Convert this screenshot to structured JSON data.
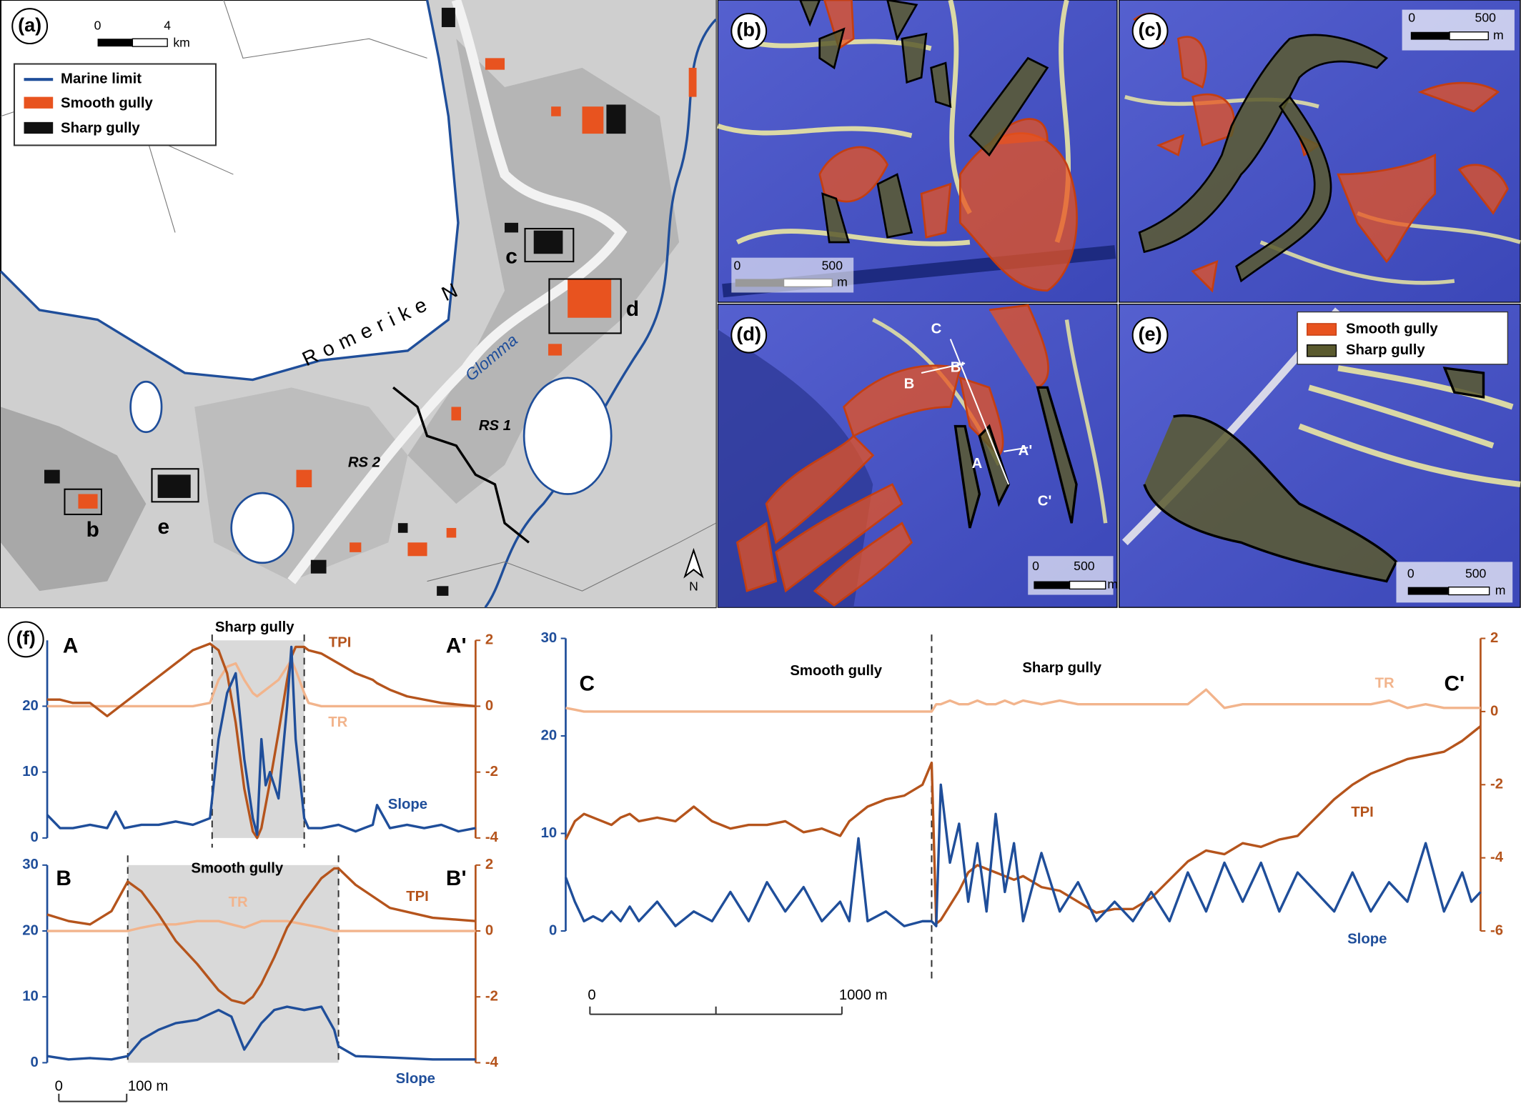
{
  "map_a": {
    "label": "(a)",
    "scale": {
      "start": "0",
      "end": "4",
      "unit": "km"
    },
    "legend": [
      "Marine limit",
      "Smooth gully",
      "Sharp gully"
    ],
    "places": {
      "region": "Romerike N",
      "river": "Glomma",
      "rs1": "RS 1",
      "rs2": "RS 2"
    },
    "insets": [
      "b",
      "c",
      "d",
      "e"
    ],
    "north": "N"
  },
  "insets": [
    {
      "label": "(b)",
      "scale": {
        "start": "0",
        "end": "500",
        "unit": "m"
      }
    },
    {
      "label": "(c)",
      "scale": {
        "start": "0",
        "end": "500",
        "unit": "m"
      }
    },
    {
      "label": "(d)",
      "scale": {
        "start": "0",
        "end": "500",
        "unit": "m"
      },
      "sections": [
        "C",
        "B",
        "B'",
        "A",
        "A'",
        "C'"
      ]
    },
    {
      "label": "(e)",
      "scale": {
        "start": "0",
        "end": "500",
        "unit": "m"
      },
      "legend": [
        "Smooth gully",
        "Sharp gully"
      ]
    }
  ],
  "profiles": {
    "label": "(f)",
    "charts": [
      {
        "type": "line",
        "start": "A",
        "end": "A'",
        "xlim": [
          0,
          100
        ],
        "ylim": [
          0,
          30
        ],
        "yticks": [
          0,
          10,
          20
        ],
        "y2lim": [
          -4,
          2
        ],
        "y2ticks": [
          2,
          0,
          -2,
          -4
        ],
        "zones": [
          {
            "name": "Sharp gully",
            "x": [
              38.5,
              60
            ],
            "shaded": true
          }
        ],
        "x": [
          0,
          3,
          6,
          10,
          14,
          16,
          18,
          22,
          26,
          30,
          34,
          38,
          40,
          42,
          44,
          46,
          48,
          49,
          50,
          51,
          52,
          54,
          56,
          57,
          58,
          60,
          61,
          64,
          68,
          72,
          76,
          77,
          80,
          84,
          88,
          92,
          96,
          100
        ],
        "series": [
          {
            "name": "Slope",
            "color": "#1f4e9a",
            "values": [
              3.5,
              1.5,
              1.5,
              2,
              1.5,
              4,
              1.5,
              2,
              2,
              2.5,
              2,
              3,
              15,
              22,
              25,
              12,
              3,
              0.5,
              15,
              8,
              10,
              6,
              20,
              29,
              15,
              3,
              1.5,
              1.5,
              2,
              1,
              2,
              5,
              1.5,
              2,
              1.5,
              2,
              1,
              1.5
            ]
          },
          {
            "name": "TPI",
            "color": "#b5541c",
            "axis": "y2",
            "values": [
              0.2,
              0.2,
              0.1,
              0.1,
              -0.3,
              -0.1,
              0.1,
              0.5,
              0.9,
              1.3,
              1.7,
              1.9,
              1.7,
              1.0,
              -0.5,
              -2.5,
              -3.8,
              -4,
              -3.7,
              -3.0,
              -2.3,
              -0.8,
              0.8,
              1.5,
              1.8,
              1.8,
              1.7,
              1.6,
              1.3,
              1.0,
              0.8,
              0.7,
              0.5,
              0.3,
              0.2,
              0.1,
              0.05,
              0
            ]
          },
          {
            "name": "TR",
            "color": "#f2b48c",
            "axis": "y2",
            "values": [
              0,
              0,
              0,
              0,
              0,
              0,
              0,
              0,
              0,
              0,
              0,
              0.1,
              0.8,
              1.2,
              1.3,
              0.8,
              0.4,
              0.3,
              0.4,
              0.5,
              0.6,
              0.8,
              1.2,
              1.4,
              1.1,
              0.4,
              0.1,
              0,
              0,
              0,
              0,
              0,
              0,
              0,
              0,
              0,
              0,
              0
            ]
          }
        ]
      },
      {
        "type": "line",
        "start": "B",
        "end": "B'",
        "xlim": [
          0,
          100
        ],
        "ylim": [
          0,
          30
        ],
        "yticks": [
          0,
          10,
          20,
          30
        ],
        "y2lim": [
          -4,
          2
        ],
        "y2ticks": [
          2,
          0,
          -2,
          -4
        ],
        "zones": [
          {
            "name": "Smooth gully",
            "x": [
              18.8,
              68
            ],
            "shaded": true
          }
        ],
        "scale_bar": {
          "start": "0",
          "end": "100 m"
        },
        "x": [
          0,
          5,
          10,
          15,
          18.8,
          22,
          26,
          30,
          35,
          40,
          43,
          46,
          48,
          50,
          53,
          56,
          60,
          64,
          67,
          68,
          72,
          80,
          90,
          100
        ],
        "series": [
          {
            "name": "Slope",
            "color": "#1f4e9a",
            "values": [
              1,
              0.5,
              0.7,
              0.5,
              1,
              3.5,
              5,
              6,
              6.5,
              8,
              7,
              2,
              4,
              6,
              8,
              8.5,
              8,
              8.5,
              5,
              2.5,
              1,
              0.8,
              0.5,
              0.5
            ]
          },
          {
            "name": "TPI",
            "color": "#b5541c",
            "axis": "y2",
            "values": [
              0.5,
              0.3,
              0.2,
              0.6,
              1.5,
              1.2,
              0.5,
              -0.3,
              -1.0,
              -1.8,
              -2.1,
              -2.2,
              -2.0,
              -1.6,
              -0.8,
              0.1,
              0.9,
              1.6,
              1.9,
              1.9,
              1.4,
              0.7,
              0.4,
              0.3
            ]
          },
          {
            "name": "TR",
            "color": "#f2b48c",
            "axis": "y2",
            "values": [
              0,
              0,
              0,
              0,
              0,
              0.1,
              0.2,
              0.2,
              0.3,
              0.3,
              0.2,
              0.1,
              0.2,
              0.3,
              0.3,
              0.3,
              0.2,
              0.1,
              0,
              0,
              0,
              0,
              0,
              0
            ]
          }
        ]
      },
      {
        "type": "line",
        "start": "C",
        "end": "C'",
        "xlim": [
          0,
          100
        ],
        "ylim": [
          0,
          30
        ],
        "yticks": [
          0,
          10,
          20,
          30
        ],
        "y2lim": [
          -6,
          2
        ],
        "y2ticks": [
          2,
          0,
          -2,
          -4,
          -6
        ],
        "zones": [
          {
            "name": "Smooth gully",
            "x": [
              0,
              40
            ],
            "shaded": false
          },
          {
            "name": "Sharp gully",
            "x": [
              40,
              100
            ],
            "shaded": false
          }
        ],
        "scale_bar": {
          "start": "0",
          "end": "1000 m"
        },
        "x": [
          0,
          1,
          2,
          3,
          4,
          5,
          6,
          7,
          8,
          10,
          12,
          14,
          16,
          18,
          20,
          22,
          24,
          26,
          28,
          30,
          31,
          32,
          33,
          35,
          37,
          39,
          40,
          40.5,
          41,
          42,
          43,
          44,
          45,
          46,
          47,
          48,
          49,
          50,
          52,
          54,
          56,
          58,
          60,
          62,
          64,
          66,
          68,
          70,
          72,
          74,
          76,
          78,
          80,
          82,
          84,
          86,
          88,
          90,
          92,
          94,
          96,
          98,
          99,
          100
        ],
        "series": [
          {
            "name": "Slope",
            "color": "#1f4e9a",
            "values": [
              5.5,
              3,
              1,
              1.5,
              1,
              2,
              1,
              2.5,
              1,
              3,
              0.5,
              2,
              1,
              4,
              1,
              5,
              2,
              4.5,
              1,
              3,
              1,
              9.5,
              1,
              2,
              0.5,
              1,
              1,
              0.5,
              15,
              7,
              11,
              3,
              9,
              2,
              12,
              4,
              9,
              1,
              8,
              2,
              5,
              1,
              3,
              1,
              4,
              1,
              6,
              2,
              7,
              3,
              7,
              2,
              6,
              4,
              2,
              6,
              2,
              5,
              3,
              9,
              2,
              6,
              3,
              4
            ]
          },
          {
            "name": "TPI",
            "color": "#b5541c",
            "axis": "y2",
            "values": [
              -3.5,
              -3.0,
              -2.8,
              -2.9,
              -3.0,
              -3.1,
              -2.9,
              -2.8,
              -3.0,
              -2.9,
              -3.0,
              -2.6,
              -3.0,
              -3.2,
              -3.1,
              -3.1,
              -3.0,
              -3.3,
              -3.2,
              -3.4,
              -3.0,
              -2.8,
              -2.6,
              -2.4,
              -2.3,
              -2.0,
              -1.4,
              -5.8,
              -5.7,
              -5.3,
              -4.9,
              -4.4,
              -4.2,
              -4.3,
              -4.4,
              -4.5,
              -4.6,
              -4.5,
              -4.8,
              -4.9,
              -5.2,
              -5.5,
              -5.4,
              -5.4,
              -5.1,
              -4.6,
              -4.1,
              -3.8,
              -3.9,
              -3.6,
              -3.7,
              -3.5,
              -3.4,
              -2.9,
              -2.4,
              -2.0,
              -1.7,
              -1.5,
              -1.3,
              -1.2,
              -1.1,
              -0.8,
              -0.6,
              -0.4
            ]
          },
          {
            "name": "TR",
            "color": "#f2b48c",
            "axis": "y2",
            "values": [
              0.1,
              0.05,
              0,
              0,
              0,
              0,
              0,
              0,
              0,
              0,
              0,
              0,
              0,
              0,
              0,
              0,
              0,
              0,
              0,
              0,
              0,
              0,
              0,
              0,
              0,
              0,
              0,
              0.2,
              0.2,
              0.3,
              0.2,
              0.2,
              0.3,
              0.2,
              0.2,
              0.3,
              0.2,
              0.3,
              0.2,
              0.3,
              0.2,
              0.2,
              0.2,
              0.2,
              0.2,
              0.2,
              0.2,
              0.6,
              0.1,
              0.2,
              0.2,
              0.2,
              0.2,
              0.2,
              0.2,
              0.2,
              0.2,
              0.3,
              0.1,
              0.2,
              0.1,
              0.1,
              0.1,
              0.1
            ]
          }
        ]
      }
    ]
  }
}
